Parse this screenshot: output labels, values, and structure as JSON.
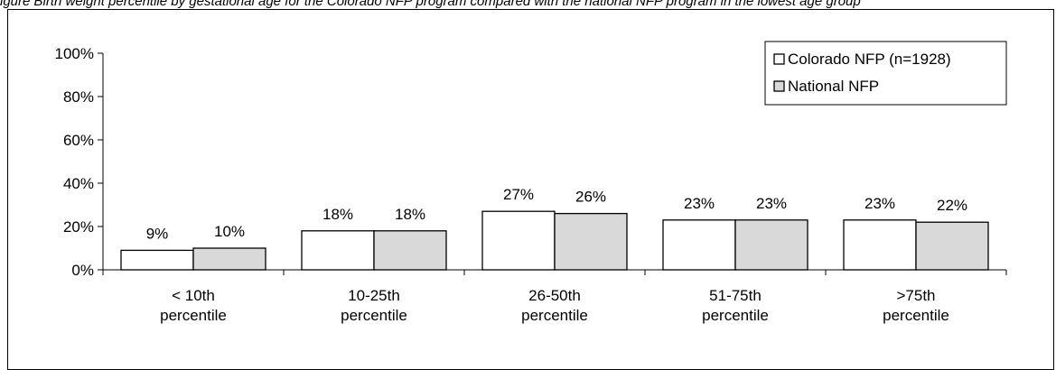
{
  "figure": {
    "caption": "igure  Birth weight percentile by gestational age for the Colorado NFP program compared with the national NFP program in the lowest age group"
  },
  "chart_data": {
    "type": "bar",
    "title": "",
    "xlabel": "",
    "ylabel": "",
    "categories": [
      [
        "< 10th",
        "percentile"
      ],
      [
        "10-25th",
        "percentile"
      ],
      [
        "26-50th",
        "percentile"
      ],
      [
        "51-75th",
        "percentile"
      ],
      [
        ">75th",
        "percentile"
      ]
    ],
    "series": [
      {
        "name": "Colorado NFP (n=1928)",
        "values": [
          9,
          18,
          27,
          23,
          23
        ],
        "labels": [
          "9%",
          "18%",
          "27%",
          "23%",
          "23%"
        ],
        "color": "#ffffff"
      },
      {
        "name": "National NFP",
        "values": [
          10,
          18,
          26,
          23,
          22
        ],
        "labels": [
          "10%",
          "18%",
          "26%",
          "23%",
          "22%"
        ],
        "color": "#d9d9d9"
      }
    ],
    "ylim": [
      0,
      100
    ],
    "yticks": [
      "0%",
      "20%",
      "40%",
      "60%",
      "80%",
      "100%"
    ],
    "grid": false,
    "legend": "top-right"
  }
}
